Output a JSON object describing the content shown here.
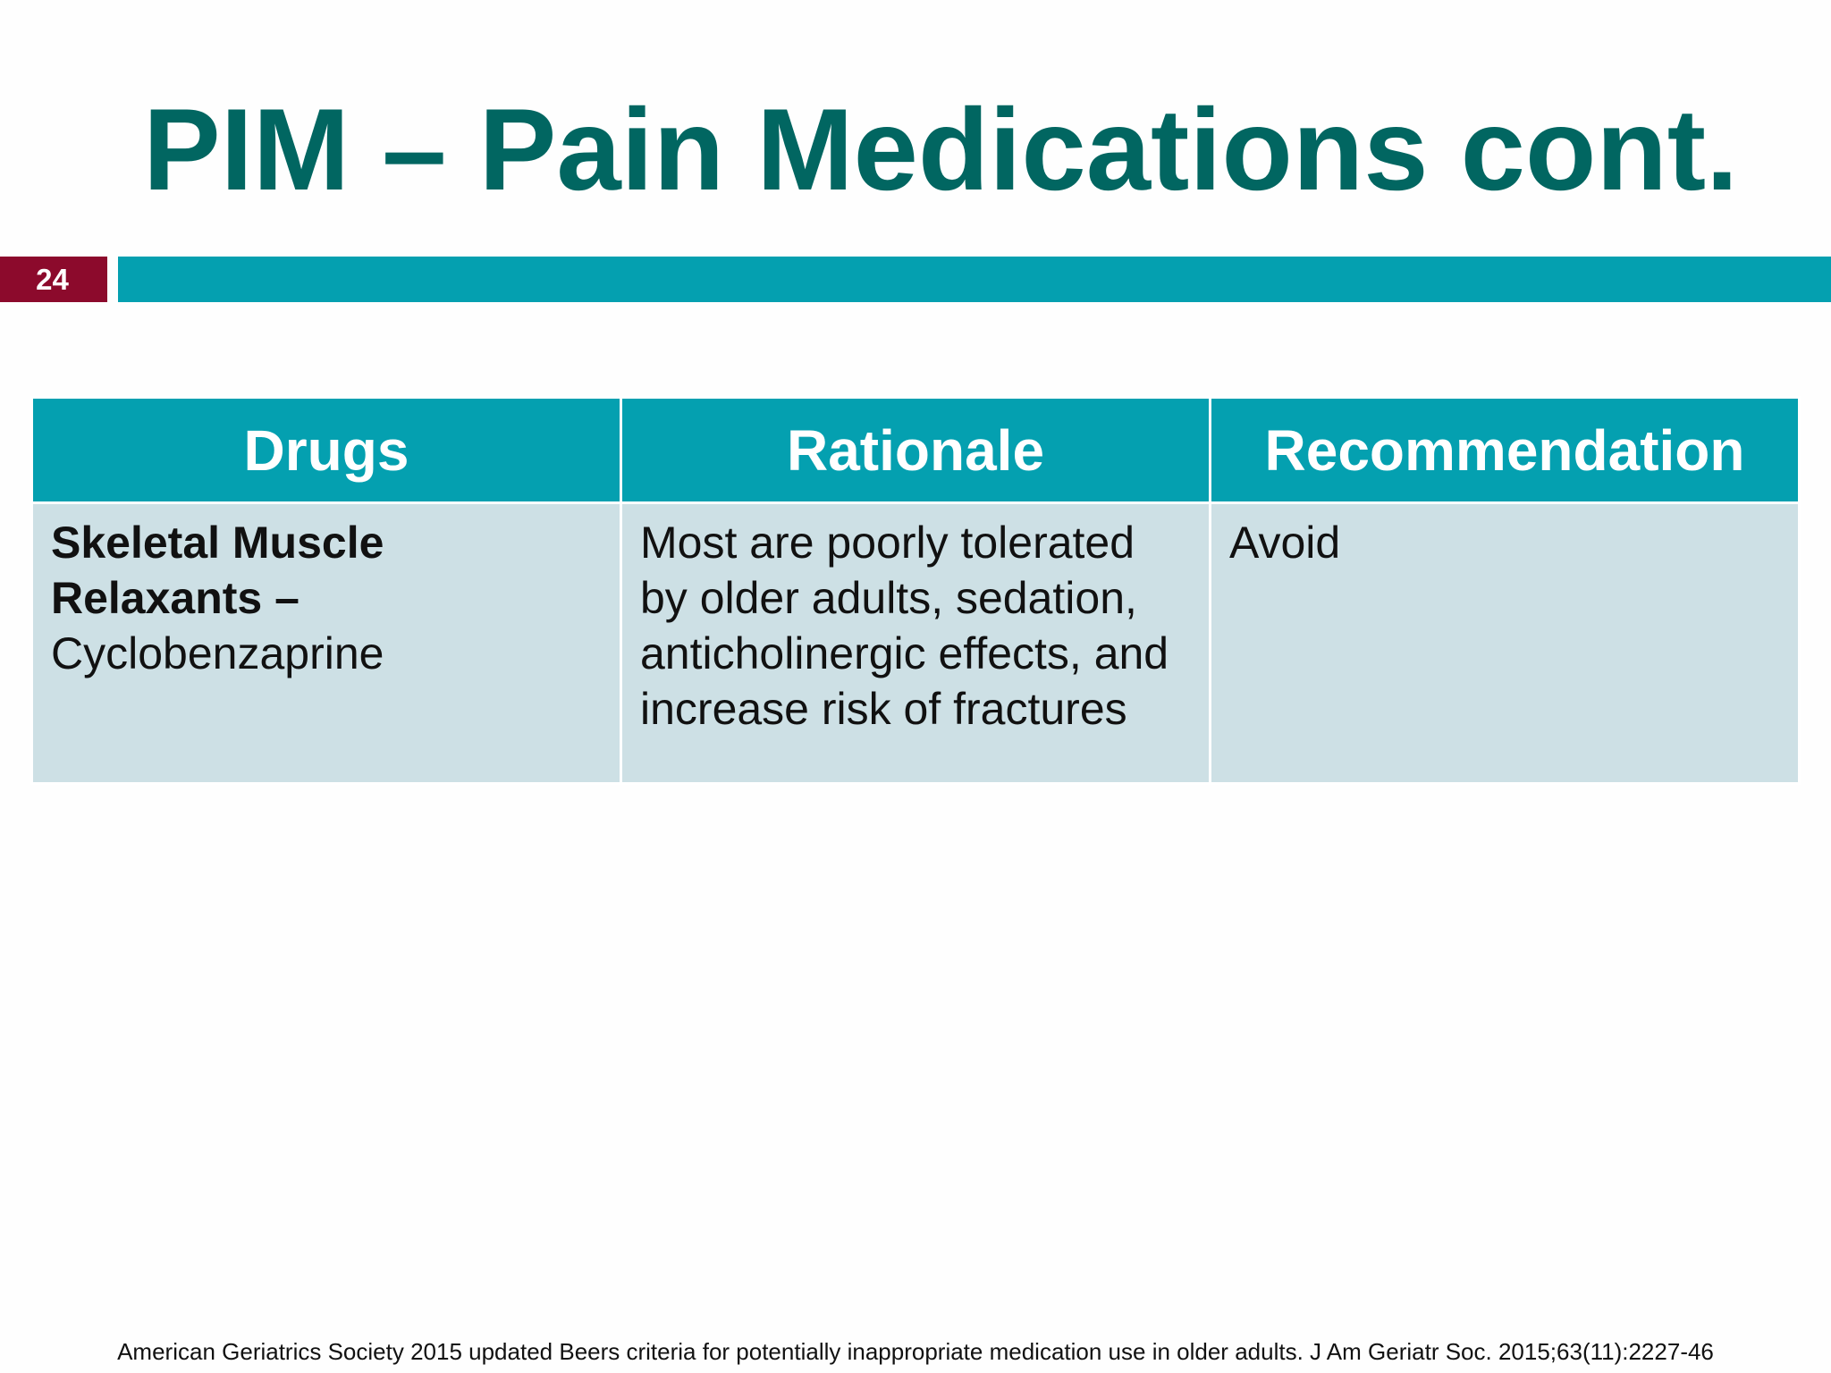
{
  "slide": {
    "title": "PIM – Pain Medications cont.",
    "number": "24",
    "colors": {
      "title": "#016661",
      "accent": "#04a0b0",
      "slide_number_bg": "#8c0a2c",
      "cell_bg": "#cde0e5"
    }
  },
  "table": {
    "headers": [
      "Drugs",
      "Rationale",
      "Recommendation"
    ],
    "rows": [
      {
        "drug_bold": "Skeletal Muscle Relaxants –",
        "drug_name": "Cyclobenzaprine",
        "rationale": "Most are poorly tolerated by older adults, sedation, anticholinergic effects, and increase risk of fractures",
        "recommendation": "Avoid"
      }
    ]
  },
  "citation": "American Geriatrics Society 2015 updated Beers criteria for potentially inappropriate medication use in older adults. J Am  Geriatr Soc. 2015;63(11):2227-46"
}
